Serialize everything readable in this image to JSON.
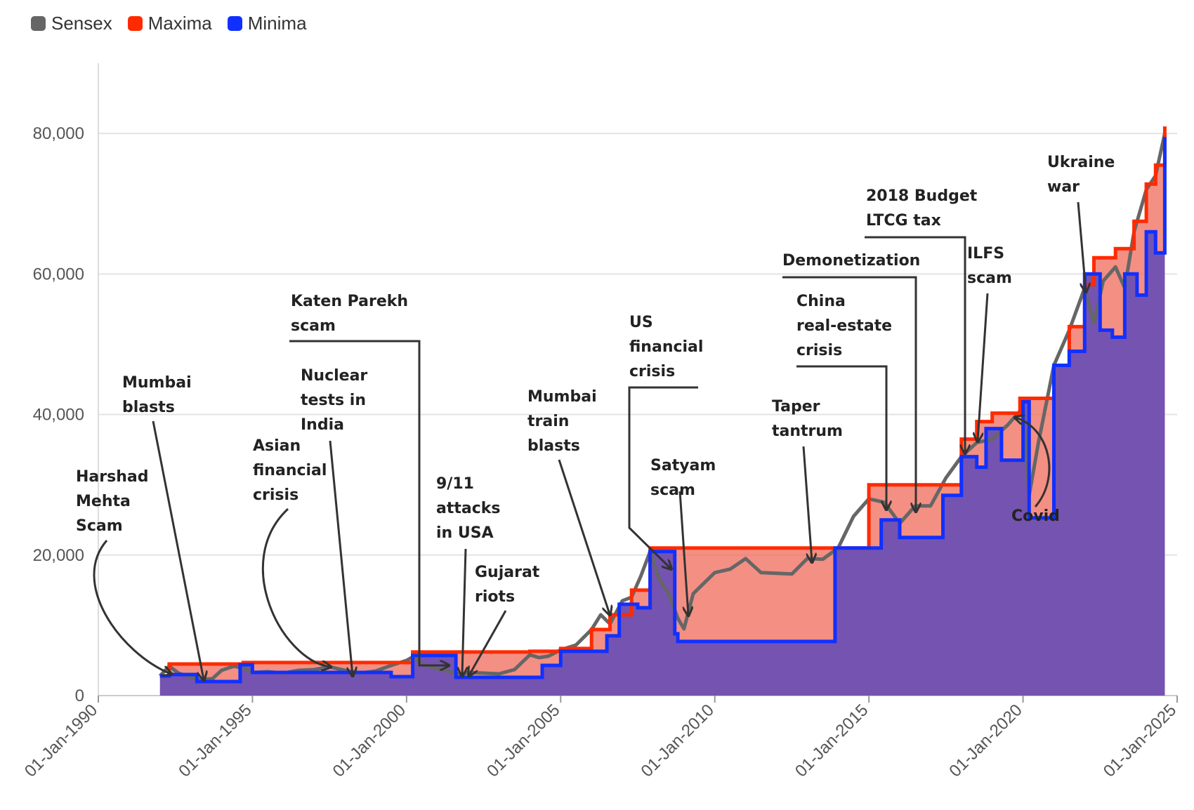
{
  "legend": [
    {
      "name": "Sensex",
      "color": "#666666"
    },
    {
      "name": "Maxima",
      "color": "#ff2a00"
    },
    {
      "name": "Minima",
      "color": "#1030ff"
    }
  ],
  "chart_data": {
    "type": "area",
    "title": "",
    "xlabel": "",
    "ylabel": "",
    "xlim": [
      1990.0,
      2025.0
    ],
    "ylim": [
      0,
      90000
    ],
    "grid": true,
    "legend_position": "top-left",
    "x_ticks": [
      "01-Jan-1990",
      "01-Jan-1995",
      "01-Jan-2000",
      "01-Jan-2005",
      "01-Jan-2010",
      "01-Jan-2015",
      "01-Jan-2020",
      "01-Jan-2025"
    ],
    "y_ticks": [
      0,
      20000,
      40000,
      60000,
      80000
    ],
    "y_tick_labels": [
      "0",
      "20,000",
      "40,000",
      "60,000",
      "80,000"
    ],
    "series": [
      {
        "name": "Sensex",
        "color": "#666666",
        "x": [
          1992.0,
          1992.3,
          1992.6,
          1993.0,
          1993.3,
          1993.7,
          1994.0,
          1994.4,
          1994.7,
          1995.0,
          1995.5,
          1996.0,
          1996.5,
          1997.0,
          1997.5,
          1998.0,
          1998.5,
          1999.0,
          1999.5,
          2000.0,
          2000.2,
          2000.5,
          2001.0,
          2001.5,
          2001.8,
          2002.0,
          2002.5,
          2003.0,
          2003.5,
          2004.0,
          2004.3,
          2004.6,
          2005.0,
          2005.5,
          2006.0,
          2006.3,
          2006.6,
          2007.0,
          2007.3,
          2007.6,
          2007.9,
          2008.2,
          2008.5,
          2008.8,
          2009.0,
          2009.3,
          2009.6,
          2010.0,
          2010.5,
          2011.0,
          2011.5,
          2012.0,
          2012.5,
          2013.0,
          2013.5,
          2014.0,
          2014.5,
          2015.0,
          2015.5,
          2016.0,
          2016.5,
          2017.0,
          2017.5,
          2018.0,
          2018.5,
          2019.0,
          2019.5,
          2020.0,
          2020.2,
          2020.5,
          2021.0,
          2021.5,
          2022.0,
          2022.3,
          2022.6,
          2023.0,
          2023.3,
          2023.6,
          2024.0,
          2024.3,
          2024.6
        ],
        "y": [
          2800,
          4200,
          3200,
          2600,
          2300,
          2400,
          3600,
          4200,
          3900,
          3300,
          3400,
          3200,
          3600,
          3700,
          4100,
          3600,
          3200,
          3500,
          4300,
          5000,
          5500,
          4500,
          3800,
          3300,
          3000,
          3300,
          3200,
          3100,
          3700,
          5800,
          5400,
          5600,
          6500,
          7200,
          9400,
          11500,
          10200,
          13500,
          14000,
          17000,
          20500,
          16500,
          14500,
          11000,
          9500,
          14500,
          15800,
          17500,
          18000,
          19500,
          17500,
          17400,
          17300,
          19500,
          19400,
          21000,
          25500,
          28000,
          27500,
          24500,
          27000,
          27000,
          31000,
          34000,
          36000,
          36500,
          38500,
          41000,
          28500,
          36000,
          47000,
          52000,
          58000,
          53000,
          59000,
          61000,
          58000,
          66000,
          72000,
          74000,
          80000
        ]
      },
      {
        "name": "Maxima",
        "color": "#ff2a00",
        "x": [
          1992.0,
          1992.3,
          1994.7,
          2000.2,
          2004.0,
          2005.0,
          2006.0,
          2006.6,
          2007.3,
          2007.9,
          2014.0,
          2015.0,
          2017.2,
          2018.0,
          2018.5,
          2019.0,
          2019.9,
          2020.9,
          2021.0,
          2021.5,
          2022.0,
          2022.3,
          2022.6,
          2023.0,
          2023.6,
          2024.0,
          2024.3,
          2024.6
        ],
        "y": [
          2800,
          4500,
          4700,
          6200,
          6300,
          6700,
          9400,
          11500,
          15000,
          21000,
          21000,
          30000,
          30000,
          36500,
          39000,
          40200,
          42300,
          42300,
          47000,
          52500,
          58500,
          62300,
          62300,
          63600,
          67500,
          72800,
          75500,
          81000
        ]
      },
      {
        "name": "Minima",
        "color": "#1030ff",
        "x": [
          1992.0,
          1992.3,
          1993.2,
          1994.6,
          1995.0,
          1999.5,
          2000.2,
          2001.6,
          2003.9,
          2004.4,
          2005.0,
          2006.5,
          2006.9,
          2007.5,
          2007.9,
          2008.7,
          2008.8,
          2013.8,
          2013.9,
          2015.4,
          2016.0,
          2017.2,
          2017.4,
          2018.0,
          2018.5,
          2018.8,
          2019.3,
          2020.0,
          2020.2,
          2020.8,
          2021.0,
          2021.5,
          2022.0,
          2022.5,
          2022.9,
          2023.3,
          2023.7,
          2024.0,
          2024.3,
          2024.6
        ],
        "y": [
          2800,
          3000,
          2000,
          4400,
          3300,
          2700,
          5700,
          2600,
          2600,
          4300,
          6300,
          8500,
          13000,
          12500,
          20500,
          8800,
          7700,
          7700,
          21000,
          25000,
          22500,
          22500,
          28500,
          34000,
          32500,
          38000,
          33500,
          41800,
          25300,
          25300,
          47000,
          49000,
          60000,
          52000,
          51000,
          60000,
          57000,
          66000,
          63000,
          79500
        ]
      }
    ],
    "annotations": [
      "Harshad Mehta Scam",
      "Mumbai blasts",
      "Asian financial crisis",
      "Nuclear tests in India",
      "Katen Parekh scam",
      "9/11 attacks in USA",
      "Gujarat riots",
      "Mumbai train blasts",
      "US financial crisis",
      "Satyam scam",
      "Taper tantrum",
      "China real-estate crisis",
      "Demonetization",
      "2018 Budget LTCG tax",
      "ILFS scam",
      "Covid",
      "Ukraine war"
    ]
  }
}
